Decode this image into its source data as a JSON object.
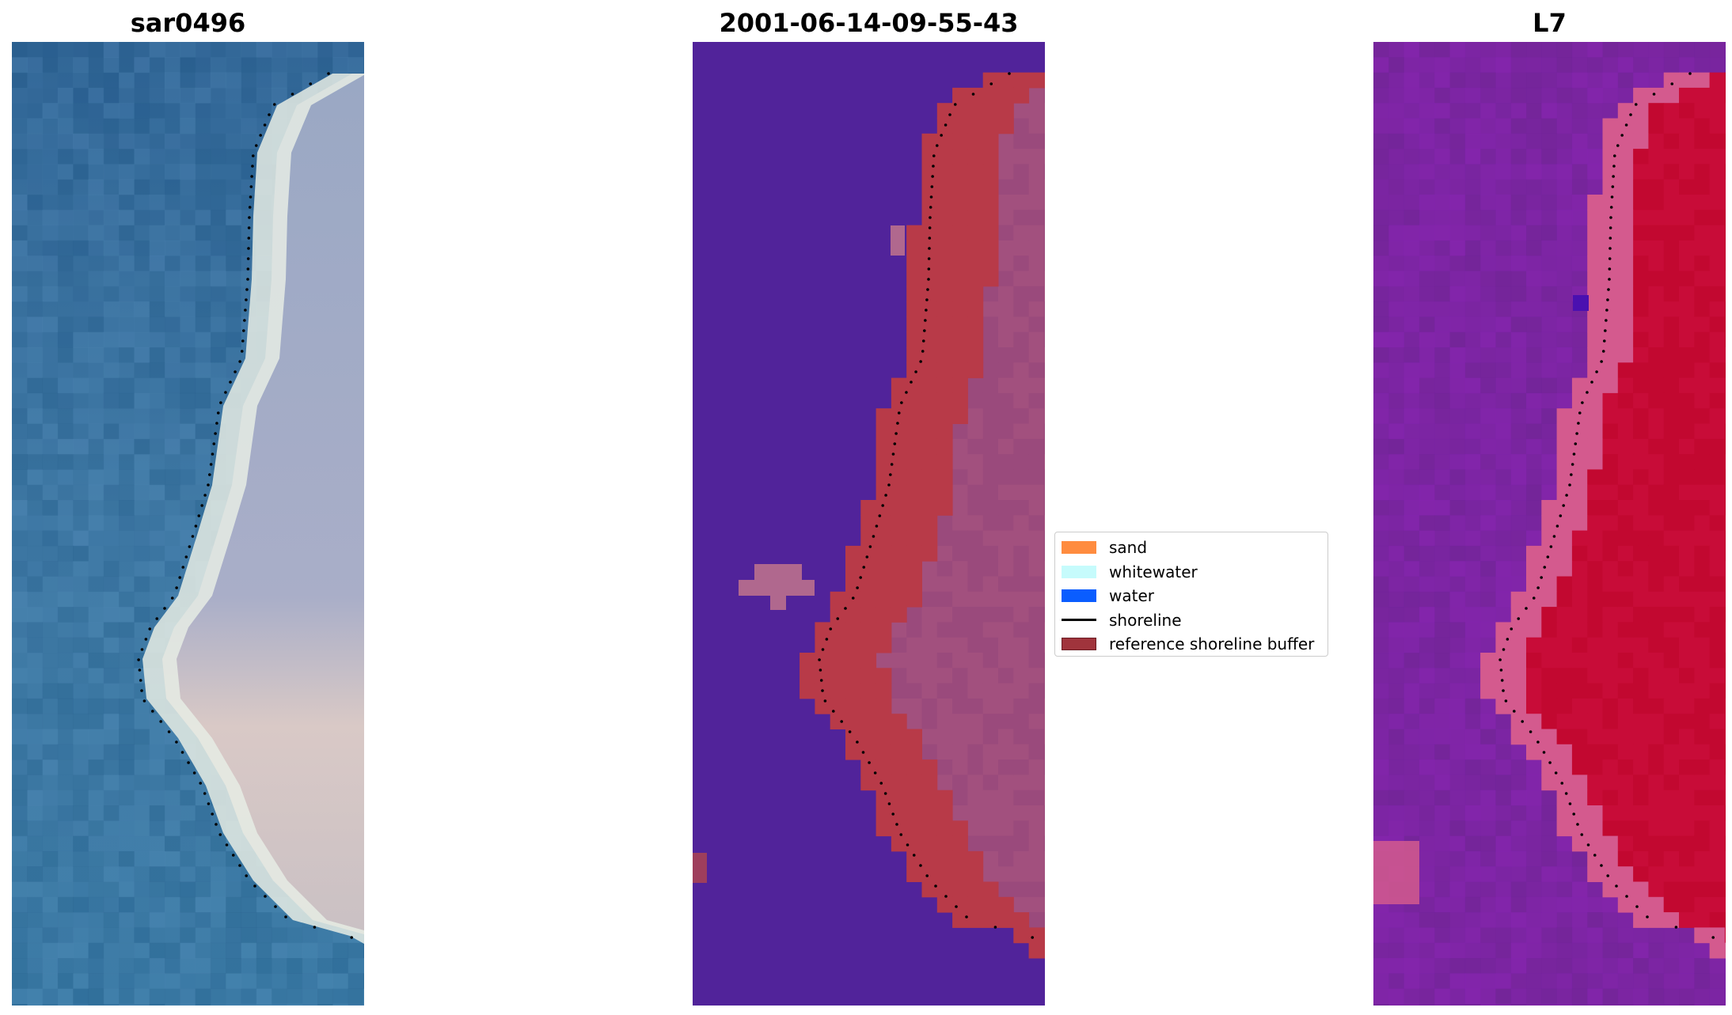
{
  "panels": [
    {
      "title": "sar0496",
      "kind": "rgb"
    },
    {
      "title": "2001-06-14-09-55-43",
      "kind": "classified"
    },
    {
      "title": "L7",
      "kind": "mndwi"
    }
  ],
  "legend": {
    "items": [
      {
        "label": "sand",
        "color": "#ff8c3f",
        "type": "patch"
      },
      {
        "label": "whitewater",
        "color": "#c6fbfc",
        "type": "patch"
      },
      {
        "label": "water",
        "color": "#0a5dff",
        "type": "patch"
      },
      {
        "label": "shoreline",
        "color": "#000000",
        "type": "line"
      },
      {
        "label": "reference shoreline buffer",
        "color": "#a0343c",
        "type": "patch"
      }
    ]
  },
  "colors": {
    "ocean_rgb": "#3a75a6",
    "beach_white": "#e8eee8",
    "land_grey": "#a8b0c8",
    "land_pink": "#d8c8c8",
    "classified_water": "#51239a",
    "buffer_red": "#b83a48",
    "land_purple": "#9a4a7c",
    "mndwi_purple": "#7c2a9c",
    "mndwi_red": "#c20830",
    "mndwi_pink": "#d45a8e"
  }
}
